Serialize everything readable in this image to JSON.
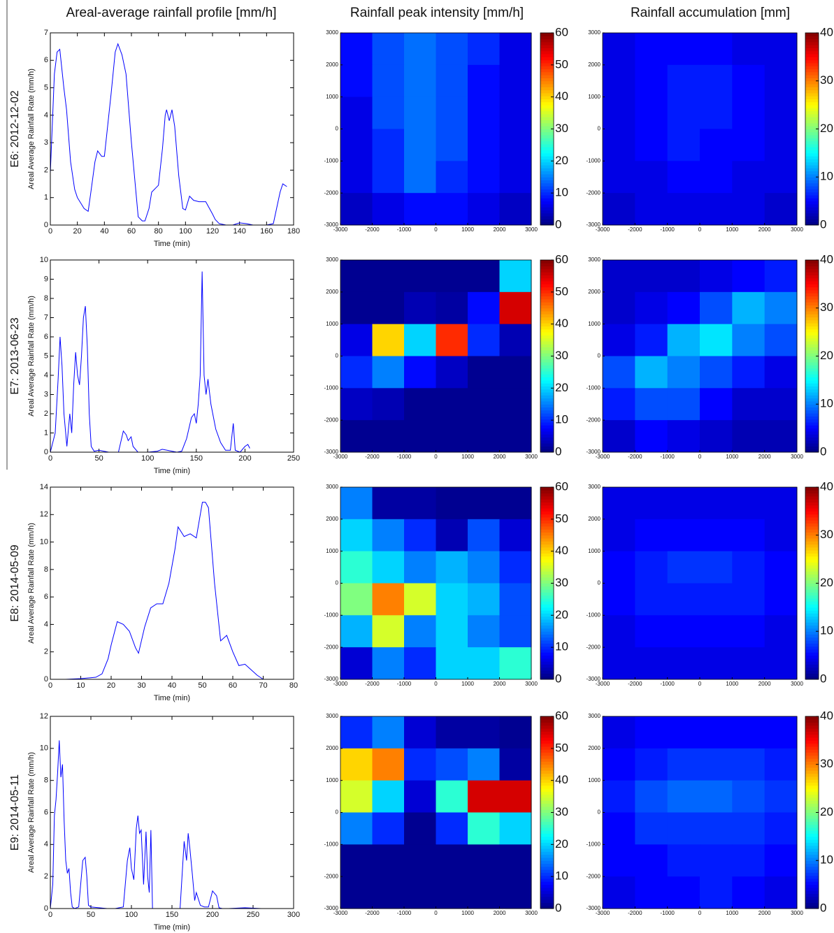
{
  "column_titles": [
    "Areal-average rainfall profile [mm/h]",
    "Rainfall peak intensity [mm/h]",
    "Rainfall accumulation [mm]"
  ],
  "row_labels": [
    "E6: 2012-12-02",
    "E7: 2013-06-23",
    "E8: 2014-05-09",
    "E9: 2014-05-11"
  ],
  "chart_data": [
    {
      "type": "line",
      "x_label": "Time (min)",
      "y_label": "Areal Average Rainfall Rate (mm/h)",
      "color": "#0000ff",
      "x": [
        0,
        3,
        5,
        7,
        10,
        12,
        15,
        18,
        20,
        25,
        28,
        30,
        33,
        35,
        38,
        40,
        45,
        48,
        50,
        53,
        56,
        60,
        65,
        68,
        70,
        73,
        75,
        80,
        83,
        85,
        86,
        88,
        90,
        92,
        95,
        98,
        100,
        103,
        106,
        110,
        115,
        120,
        122,
        125,
        130,
        135,
        140,
        145,
        150,
        160,
        165,
        170,
        172,
        175
      ],
      "values": [
        1.9,
        5.5,
        6.3,
        6.4,
        5.0,
        4.2,
        2.3,
        1.3,
        1.0,
        0.6,
        0.5,
        1.2,
        2.3,
        2.7,
        2.5,
        2.5,
        4.8,
        6.3,
        6.6,
        6.2,
        5.5,
        3.0,
        0.3,
        0.15,
        0.15,
        0.6,
        1.2,
        1.45,
        2.8,
        4.0,
        4.2,
        3.8,
        4.2,
        3.6,
        1.8,
        0.6,
        0.55,
        1.05,
        0.9,
        0.85,
        0.85,
        0.4,
        0.2,
        0.05,
        0,
        0,
        0.08,
        0.05,
        0,
        0,
        0.05,
        1.2,
        1.5,
        1.4
      ],
      "xlim": [
        0,
        180
      ],
      "xticks": [
        0,
        20,
        40,
        60,
        80,
        100,
        120,
        140,
        160,
        180
      ],
      "ylim": [
        0,
        7
      ],
      "yticks": [
        0,
        1,
        2,
        3,
        4,
        5,
        6,
        7
      ]
    },
    {
      "type": "heatmap",
      "colormap": "jet",
      "xlim": [
        -3000,
        3000
      ],
      "ylim": [
        -3000,
        3000
      ],
      "xticks": [
        -3000,
        -2000,
        -1000,
        0,
        1000,
        2000,
        3000
      ],
      "yticks": [
        -3000,
        -2000,
        -1000,
        0,
        1000,
        2000,
        3000
      ],
      "clim": [
        0,
        60
      ],
      "cticks": [
        0,
        10,
        20,
        30,
        40,
        50,
        60
      ],
      "z": [
        [
          8,
          12,
          14,
          12,
          10,
          6
        ],
        [
          8,
          12,
          14,
          12,
          8,
          6
        ],
        [
          6,
          12,
          14,
          12,
          8,
          6
        ],
        [
          6,
          10,
          14,
          12,
          8,
          6
        ],
        [
          6,
          10,
          14,
          10,
          8,
          6
        ],
        [
          4,
          6,
          8,
          8,
          6,
          4
        ]
      ]
    },
    {
      "type": "heatmap",
      "colormap": "jet",
      "xlim": [
        -3000,
        3000
      ],
      "ylim": [
        -3000,
        3000
      ],
      "xticks": [
        -3000,
        -2000,
        -1000,
        0,
        1000,
        2000,
        3000
      ],
      "yticks": [
        -3000,
        -2000,
        -1000,
        0,
        1000,
        2000,
        3000
      ],
      "clim": [
        0,
        40
      ],
      "cticks": [
        0,
        10,
        20,
        30,
        40
      ],
      "z": [
        [
          4,
          5,
          5,
          5,
          4,
          4
        ],
        [
          4,
          5,
          6,
          6,
          5,
          4
        ],
        [
          4,
          5,
          6,
          6,
          5,
          4
        ],
        [
          4,
          5,
          6,
          5,
          5,
          4
        ],
        [
          4,
          4,
          5,
          5,
          4,
          4
        ],
        [
          3,
          4,
          4,
          4,
          4,
          3
        ]
      ]
    },
    {
      "type": "line",
      "x_label": "Time (min)",
      "y_label": "Areal Average Rainfall Rate (mm/h)",
      "color": "#0000ff",
      "x": [
        0,
        5,
        8,
        10,
        12,
        14,
        17,
        20,
        22,
        24,
        26,
        28,
        30,
        32,
        34,
        36,
        38,
        40,
        42,
        45,
        50,
        55,
        60,
        70,
        75,
        78,
        80,
        83,
        85,
        90,
        100,
        110,
        115,
        120,
        130,
        135,
        140,
        145,
        148,
        150,
        152,
        154,
        156,
        158,
        160,
        162,
        165,
        170,
        175,
        180,
        185,
        188,
        190,
        195,
        200,
        203,
        205
      ],
      "values": [
        0,
        1.0,
        3.8,
        6.0,
        4.5,
        2.0,
        0.3,
        2.0,
        1.0,
        3.5,
        5.2,
        4.0,
        3.5,
        5.0,
        7.0,
        7.6,
        5.5,
        2.0,
        0.3,
        0.05,
        0.1,
        0.05,
        0,
        0,
        1.1,
        0.9,
        0.6,
        0.8,
        0.3,
        0,
        0,
        0.05,
        0.15,
        0.1,
        0,
        0.05,
        0.7,
        1.8,
        2.0,
        1.5,
        2.5,
        4.0,
        9.4,
        4.0,
        3.0,
        3.8,
        2.5,
        1.2,
        0.5,
        0.1,
        0.1,
        1.5,
        0.1,
        0,
        0.3,
        0.4,
        0.2
      ],
      "xlim": [
        0,
        250
      ],
      "xticks": [
        0,
        50,
        100,
        150,
        200,
        250
      ],
      "ylim": [
        0,
        10
      ],
      "yticks": [
        0,
        1,
        2,
        3,
        4,
        5,
        6,
        7,
        8,
        9,
        10
      ]
    },
    {
      "type": "heatmap",
      "colormap": "jet",
      "xlim": [
        -3000,
        3000
      ],
      "ylim": [
        -3000,
        3000
      ],
      "xticks": [
        -3000,
        -2000,
        -1000,
        0,
        1000,
        2000,
        3000
      ],
      "yticks": [
        -3000,
        -2000,
        -1000,
        0,
        1000,
        2000,
        3000
      ],
      "clim": [
        0,
        60
      ],
      "cticks": [
        0,
        10,
        20,
        30,
        40,
        50,
        60
      ],
      "z": [
        [
          1,
          1,
          1,
          1,
          1,
          20
        ],
        [
          1,
          1,
          3,
          2,
          8,
          55
        ],
        [
          6,
          40,
          20,
          50,
          10,
          3
        ],
        [
          10,
          15,
          8,
          4,
          1,
          1
        ],
        [
          4,
          3,
          1,
          1,
          1,
          1
        ],
        [
          1,
          1,
          1,
          1,
          1,
          1
        ]
      ]
    },
    {
      "type": "heatmap",
      "colormap": "jet",
      "xlim": [
        -3000,
        3000
      ],
      "ylim": [
        -3000,
        3000
      ],
      "xticks": [
        -3000,
        -2000,
        -1000,
        0,
        1000,
        2000,
        3000
      ],
      "yticks": [
        -3000,
        -2000,
        -1000,
        0,
        1000,
        2000,
        3000
      ],
      "clim": [
        0,
        40
      ],
      "cticks": [
        0,
        10,
        20,
        30,
        40
      ],
      "z": [
        [
          3,
          3,
          3,
          4,
          5,
          6
        ],
        [
          3,
          4,
          5,
          8,
          12,
          10
        ],
        [
          4,
          6,
          12,
          14,
          10,
          8
        ],
        [
          8,
          12,
          10,
          8,
          6,
          4
        ],
        [
          6,
          8,
          8,
          5,
          3,
          3
        ],
        [
          3,
          5,
          4,
          3,
          2,
          2
        ]
      ]
    },
    {
      "type": "line",
      "x_label": "Time (min)",
      "y_label": "Areal Average Rainfall Rate (mm/h)",
      "color": "#0000ff",
      "x": [
        0,
        5,
        10,
        15,
        17,
        19,
        20,
        22,
        24,
        26,
        28,
        29,
        31,
        33,
        35,
        37,
        39,
        41,
        42,
        44,
        46,
        48,
        50,
        51,
        52,
        54,
        56,
        58,
        60,
        62,
        64,
        66,
        68,
        70
      ],
      "values": [
        0,
        0,
        0.05,
        0.15,
        0.4,
        1.5,
        2.5,
        4.2,
        4.0,
        3.5,
        2.3,
        1.9,
        3.8,
        5.2,
        5.5,
        5.5,
        7.0,
        9.5,
        11.1,
        10.4,
        10.6,
        10.3,
        12.9,
        12.9,
        12.5,
        7.0,
        2.8,
        3.2,
        2.0,
        1.0,
        1.1,
        0.7,
        0.3,
        0
      ],
      "xlim": [
        0,
        80
      ],
      "xticks": [
        0,
        10,
        20,
        30,
        40,
        50,
        60,
        70,
        80
      ],
      "ylim": [
        0,
        14
      ],
      "yticks": [
        0,
        2,
        4,
        6,
        8,
        10,
        12,
        14
      ]
    },
    {
      "type": "heatmap",
      "colormap": "jet",
      "xlim": [
        -3000,
        3000
      ],
      "ylim": [
        -3000,
        3000
      ],
      "xticks": [
        -3000,
        -2000,
        -1000,
        0,
        1000,
        2000,
        3000
      ],
      "yticks": [
        -3000,
        -2000,
        -1000,
        0,
        1000,
        2000,
        3000
      ],
      "clim": [
        0,
        60
      ],
      "cticks": [
        0,
        10,
        20,
        30,
        40,
        50,
        60
      ],
      "z": [
        [
          15,
          2,
          2,
          1,
          1,
          1
        ],
        [
          20,
          15,
          10,
          3,
          12,
          5
        ],
        [
          25,
          20,
          15,
          18,
          15,
          10
        ],
        [
          30,
          45,
          35,
          20,
          18,
          12
        ],
        [
          18,
          35,
          15,
          20,
          15,
          12
        ],
        [
          5,
          15,
          10,
          20,
          20,
          25
        ]
      ]
    },
    {
      "type": "heatmap",
      "colormap": "jet",
      "xlim": [
        -3000,
        3000
      ],
      "ylim": [
        -3000,
        3000
      ],
      "xticks": [
        -3000,
        -2000,
        -1000,
        0,
        1000,
        2000,
        3000
      ],
      "yticks": [
        -3000,
        -2000,
        -1000,
        0,
        1000,
        2000,
        3000
      ],
      "clim": [
        0,
        40
      ],
      "cticks": [
        0,
        10,
        20,
        30,
        40
      ],
      "z": [
        [
          4,
          4,
          4,
          4,
          4,
          4
        ],
        [
          4,
          5,
          5,
          5,
          5,
          4
        ],
        [
          5,
          6,
          7,
          7,
          6,
          5
        ],
        [
          5,
          6,
          6,
          6,
          6,
          5
        ],
        [
          4,
          5,
          5,
          5,
          5,
          4
        ],
        [
          4,
          4,
          4,
          4,
          4,
          4
        ]
      ]
    },
    {
      "type": "line",
      "x_label": "Time (min)",
      "y_label": "Areal Average Rainfall Rate (mm/h)",
      "color": "#0000ff",
      "x": [
        0,
        3,
        5,
        7,
        9,
        11,
        13,
        15,
        17,
        19,
        21,
        23,
        25,
        27,
        30,
        35,
        40,
        43,
        45,
        47,
        50,
        60,
        70,
        80,
        90,
        95,
        98,
        100,
        103,
        106,
        108,
        110,
        112,
        115,
        118,
        120,
        122,
        124,
        126,
        130,
        140,
        160,
        165,
        168,
        170,
        172,
        175,
        178,
        180,
        185,
        190,
        195,
        200,
        205,
        208,
        212,
        215,
        220,
        240,
        260,
        280,
        300
      ],
      "values": [
        0,
        1.5,
        5.8,
        6.8,
        8.5,
        10.5,
        8.2,
        9.0,
        5.5,
        3.0,
        2.2,
        2.5,
        1.0,
        0.1,
        0,
        0.1,
        3.0,
        3.2,
        2.0,
        0.2,
        0.1,
        0.05,
        0,
        0,
        0.1,
        3.0,
        3.8,
        2.5,
        1.8,
        5.0,
        5.8,
        4.7,
        4.9,
        1.5,
        4.8,
        2.0,
        1.0,
        4.9,
        0,
        0,
        0,
        0,
        4.2,
        3.0,
        4.7,
        3.8,
        2.2,
        0.5,
        1.0,
        0.2,
        0.1,
        0.1,
        1.1,
        0.8,
        0.05,
        0,
        0,
        0,
        0.05,
        0,
        0,
        0
      ],
      "xlim": [
        0,
        300
      ],
      "xticks": [
        0,
        50,
        100,
        150,
        200,
        250,
        300
      ],
      "ylim": [
        0,
        12
      ],
      "yticks": [
        0,
        2,
        4,
        6,
        8,
        10,
        12
      ]
    },
    {
      "type": "heatmap",
      "colormap": "jet",
      "xlim": [
        -3000,
        3000
      ],
      "ylim": [
        -3000,
        3000
      ],
      "xticks": [
        -3000,
        -2000,
        -1000,
        0,
        1000,
        2000,
        3000
      ],
      "yticks": [
        -3000,
        -2000,
        -1000,
        0,
        1000,
        2000,
        3000
      ],
      "clim": [
        0,
        60
      ],
      "cticks": [
        0,
        10,
        20,
        30,
        40,
        50,
        60
      ],
      "z": [
        [
          10,
          15,
          5,
          2,
          2,
          1
        ],
        [
          40,
          45,
          10,
          12,
          15,
          2
        ],
        [
          35,
          20,
          5,
          25,
          55,
          55
        ],
        [
          15,
          10,
          1,
          10,
          25,
          20
        ],
        [
          1,
          1,
          1,
          1,
          1,
          1
        ],
        [
          1,
          1,
          1,
          1,
          1,
          1
        ]
      ]
    },
    {
      "type": "heatmap",
      "colormap": "jet",
      "xlim": [
        -3000,
        3000
      ],
      "ylim": [
        -3000,
        3000
      ],
      "xticks": [
        -3000,
        -2000,
        -1000,
        0,
        1000,
        2000,
        3000
      ],
      "yticks": [
        -3000,
        -2000,
        -1000,
        0,
        1000,
        2000,
        3000
      ],
      "clim": [
        0,
        40
      ],
      "cticks": [
        0,
        10,
        20,
        30,
        40
      ],
      "z": [
        [
          4,
          5,
          5,
          5,
          5,
          5
        ],
        [
          5,
          6,
          7,
          7,
          7,
          6
        ],
        [
          6,
          8,
          9,
          9,
          8,
          7
        ],
        [
          5,
          7,
          7,
          7,
          7,
          6
        ],
        [
          5,
          5,
          6,
          6,
          6,
          5
        ],
        [
          4,
          5,
          5,
          6,
          5,
          4
        ]
      ]
    }
  ]
}
